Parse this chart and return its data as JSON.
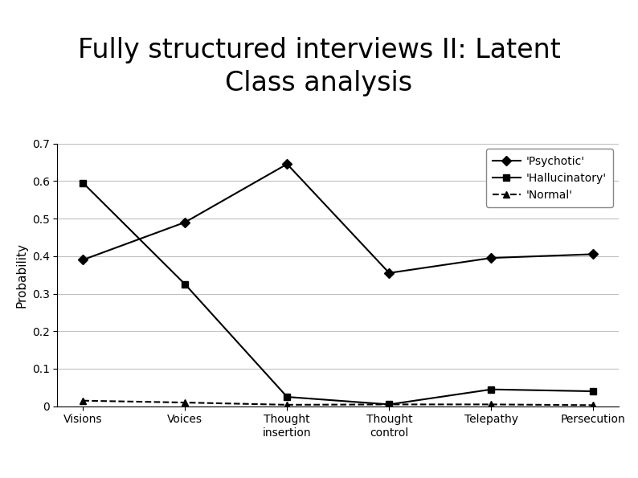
{
  "title": "Fully structured interviews II: Latent\nClass analysis",
  "xlabel": "",
  "ylabel": "Probability",
  "categories": [
    "Visions",
    "Voices",
    "Thought\ninsertion",
    "Thought\ncontrol",
    "Telepathy",
    "Persecution"
  ],
  "psychotic": [
    0.39,
    0.49,
    0.645,
    0.355,
    0.395,
    0.405
  ],
  "hallucinatory": [
    0.595,
    0.325,
    0.025,
    0.005,
    0.045,
    0.04
  ],
  "normal": [
    0.015,
    0.01,
    0.004,
    0.005,
    0.005,
    0.003
  ],
  "ylim": [
    0,
    0.7
  ],
  "yticks": [
    0,
    0.1,
    0.2,
    0.3,
    0.4,
    0.5,
    0.6,
    0.7
  ],
  "legend_labels": [
    "'Psychotic'",
    "'Hallucinatory'",
    "'Normal'"
  ],
  "line_color": "#000000",
  "background_color": "#ffffff",
  "title_fontsize": 24,
  "axis_fontsize": 11,
  "tick_fontsize": 10,
  "legend_fontsize": 10
}
